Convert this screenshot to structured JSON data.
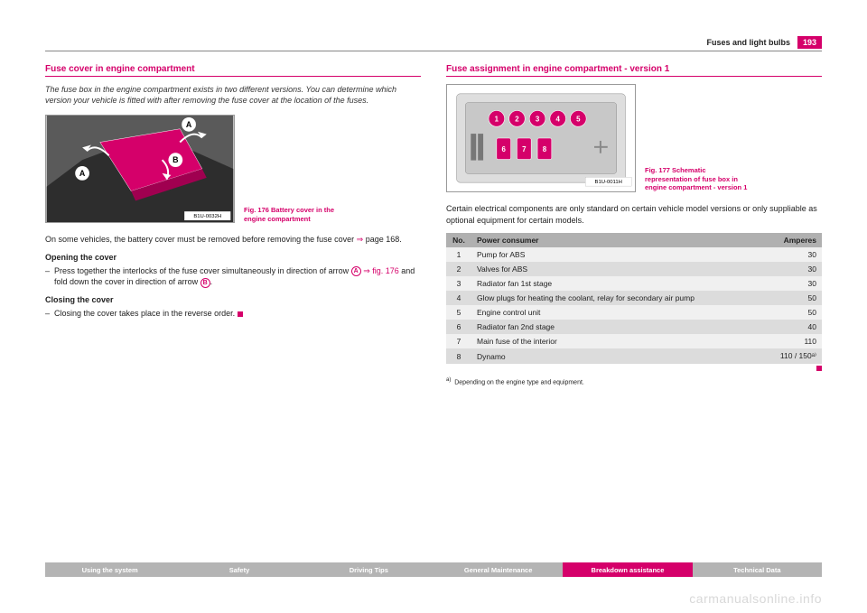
{
  "header": {
    "section": "Fuses and light bulbs",
    "page": "193"
  },
  "left": {
    "title": "Fuse cover in engine compartment",
    "intro": "The fuse box in the engine compartment exists in two different versions. You can determine which version your vehicle is fitted with after removing the fuse cover at the location of the fuses.",
    "fig_caption": "Fig. 176  Battery cover in the engine compartment",
    "fig_ref_code": "B1U-0032H",
    "p1_a": "On some vehicles, the battery cover must be removed before removing the fuse cover ",
    "p1_b": " page 168.",
    "sub1": "Opening the cover",
    "b1_a": "Press together the interlocks of the fuse cover simultaneously in direction of arrow ",
    "b1_b": " ",
    "b1_c": " fig. 176",
    "b1_d": " and fold down the cover in direction of arrow ",
    "b1_e": ".",
    "sub2": "Closing the cover",
    "b2": "Closing the cover takes place in the reverse order."
  },
  "right": {
    "title": "Fuse assignment in engine compartment - version 1",
    "fig_caption": "Fig. 177  Schematic representation of fuse box in engine compartment - version 1",
    "fig_ref_code": "B1U-0011H",
    "intro": "Certain electrical components are only standard on certain vehicle model versions or only suppliable as optional equipment for certain models.",
    "table": {
      "headers": [
        "No.",
        "Power consumer",
        "Amperes"
      ],
      "rows": [
        [
          "1",
          "Pump for ABS",
          "30"
        ],
        [
          "2",
          "Valves for ABS",
          "30"
        ],
        [
          "3",
          "Radiator fan 1st stage",
          "30"
        ],
        [
          "4",
          "Glow plugs for heating the coolant, relay for secondary air pump",
          "50"
        ],
        [
          "5",
          "Engine control unit",
          "50"
        ],
        [
          "6",
          "Radiator fan 2nd stage",
          "40"
        ],
        [
          "7",
          "Main fuse of the interior",
          "110"
        ],
        [
          "8",
          "Dynamo",
          "110 / 150ᵃ⁾"
        ]
      ]
    },
    "footnote_label": "a)",
    "footnote": "Depending on the engine type and equipment."
  },
  "nav": {
    "tabs": [
      "Using the system",
      "Safety",
      "Driving Tips",
      "General Maintenance",
      "Breakdown assistance",
      "Technical Data"
    ],
    "active": 4
  },
  "watermark": "carmanualsonline.info",
  "arrow_glyph": "⇒",
  "label_A": "A",
  "label_B": "B"
}
